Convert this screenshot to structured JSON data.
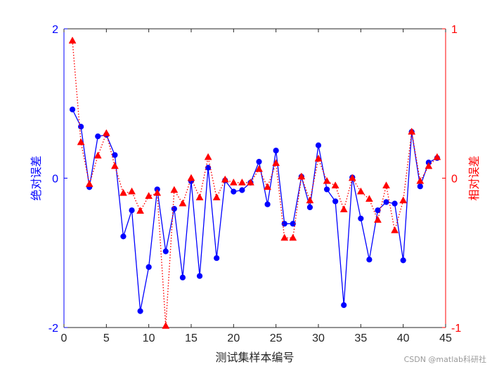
{
  "chart_data": {
    "type": "line",
    "xlabel": "测试集样本编号",
    "x": [
      1,
      2,
      3,
      4,
      5,
      6,
      7,
      8,
      9,
      10,
      11,
      12,
      13,
      14,
      15,
      16,
      17,
      18,
      19,
      20,
      21,
      22,
      23,
      24,
      25,
      26,
      27,
      28,
      29,
      30,
      31,
      32,
      33,
      34,
      35,
      36,
      37,
      38,
      39,
      40,
      41,
      42,
      43,
      44
    ],
    "xlim": [
      0,
      45
    ],
    "xticks": [
      0,
      5,
      10,
      15,
      20,
      25,
      30,
      35,
      40,
      45
    ],
    "left_axis": {
      "label": "绝对误差",
      "lim": [
        -2,
        2
      ],
      "ticks": [
        -2,
        0,
        2
      ],
      "color": "#0000ff"
    },
    "right_axis": {
      "label": "相对误差",
      "lim": [
        -1,
        1
      ],
      "ticks": [
        -1,
        0,
        1
      ],
      "color": "#ff0000"
    },
    "series": [
      {
        "axis": "left",
        "color": "#0000ff",
        "line": "solid",
        "marker": "circle",
        "values": [
          0.92,
          0.69,
          -0.12,
          0.56,
          0.58,
          0.31,
          -0.78,
          -0.43,
          -1.78,
          -1.19,
          -0.15,
          -0.98,
          -0.41,
          -1.33,
          -0.04,
          -1.31,
          0.14,
          -1.07,
          -0.03,
          -0.18,
          -0.16,
          -0.06,
          0.22,
          -0.35,
          0.37,
          -0.61,
          -0.61,
          0.02,
          -0.39,
          0.44,
          -0.15,
          -0.31,
          -1.7,
          0.01,
          -0.54,
          -1.09,
          -0.43,
          -0.32,
          -0.34,
          -1.1,
          0.62,
          -0.11,
          0.21,
          0.27
        ]
      },
      {
        "axis": "right",
        "color": "#ff0000",
        "line": "dotted",
        "marker": "triangle",
        "values": [
          0.92,
          0.24,
          -0.04,
          0.15,
          0.3,
          0.08,
          -0.1,
          -0.09,
          -0.22,
          -0.12,
          -0.1,
          -0.99,
          -0.08,
          -0.17,
          0.0,
          -0.13,
          0.14,
          -0.13,
          -0.01,
          -0.03,
          -0.03,
          -0.03,
          0.06,
          -0.06,
          0.1,
          -0.4,
          -0.4,
          0.01,
          -0.15,
          0.13,
          -0.02,
          -0.05,
          -0.21,
          0.0,
          -0.09,
          -0.14,
          -0.28,
          -0.05,
          -0.35,
          -0.15,
          0.31,
          -0.02,
          0.08,
          0.14
        ]
      }
    ]
  },
  "watermark": "CSDN @matlab科研社"
}
